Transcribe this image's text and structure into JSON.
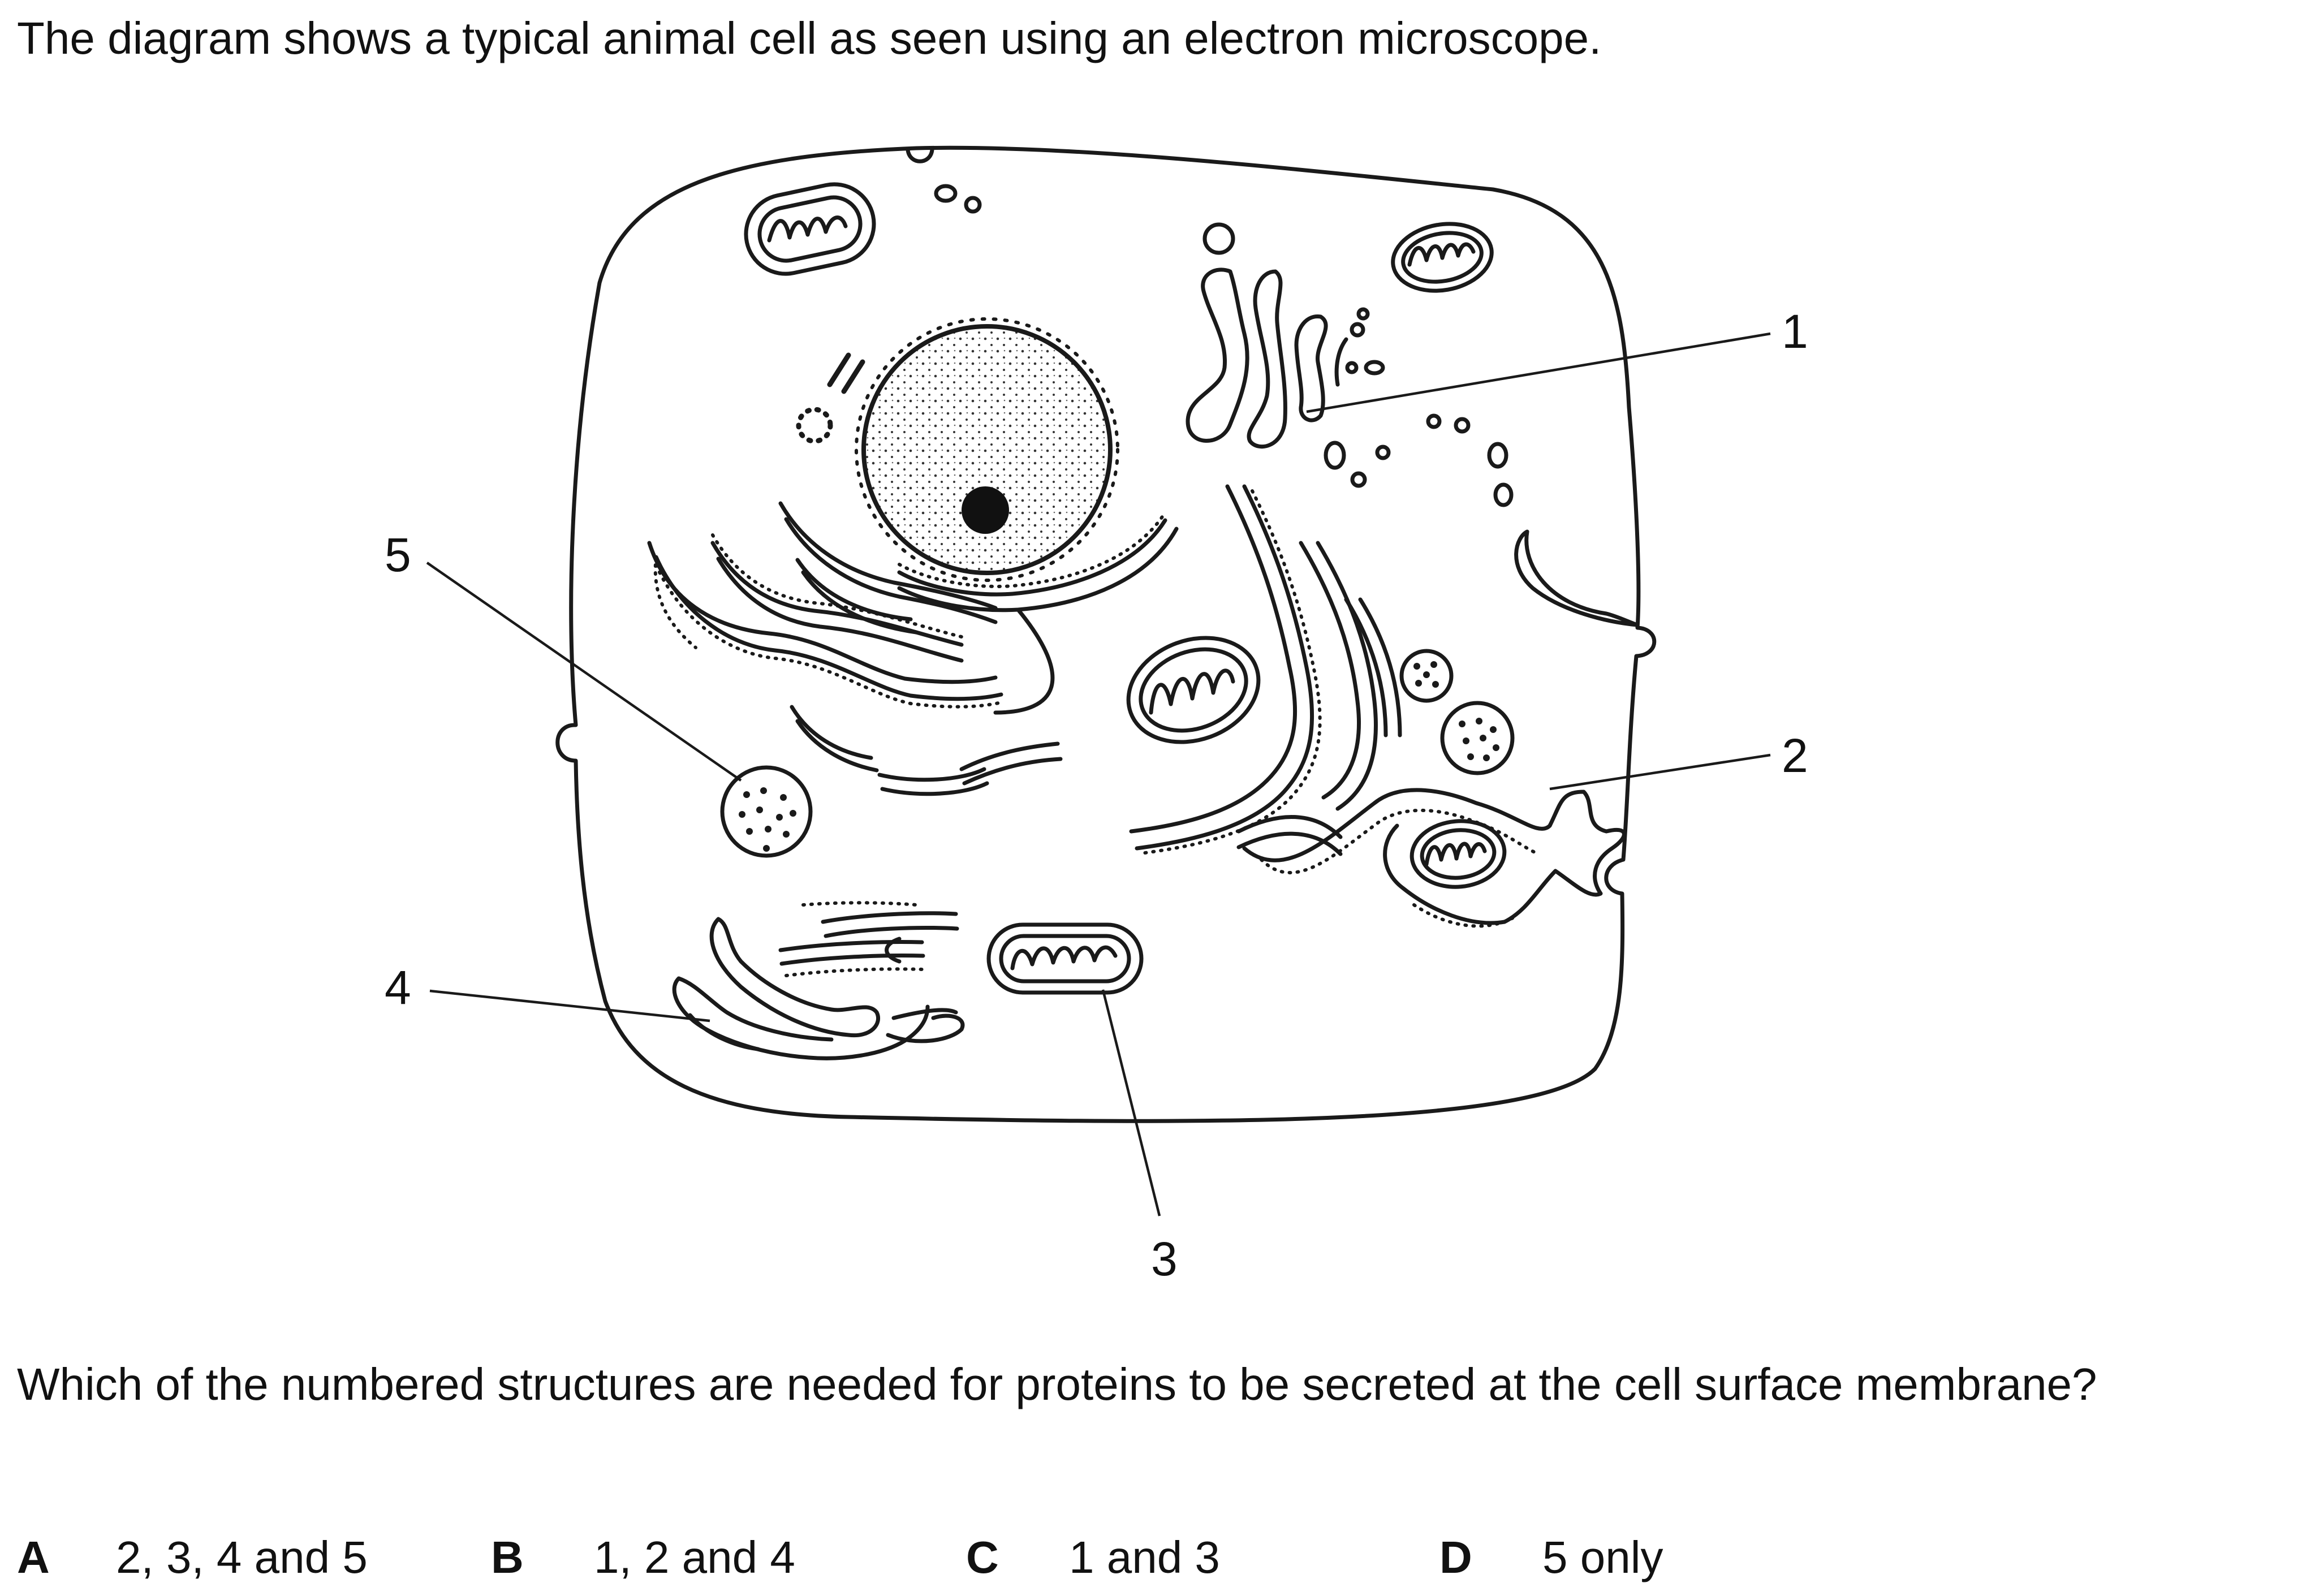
{
  "question": {
    "intro": "The diagram shows a typical animal cell as seen using an electron microscope.",
    "stem": "Which of the numbered structures are needed for proteins to be secreted at the cell surface membrane?"
  },
  "diagram": {
    "labels": [
      "1",
      "2",
      "3",
      "4",
      "5"
    ]
  },
  "options": [
    {
      "letter": "A",
      "text": "2, 3, 4 and 5"
    },
    {
      "letter": "B",
      "text": "1, 2 and 4"
    },
    {
      "letter": "C",
      "text": "1 and 3"
    },
    {
      "letter": "D",
      "text": "5 only"
    }
  ]
}
